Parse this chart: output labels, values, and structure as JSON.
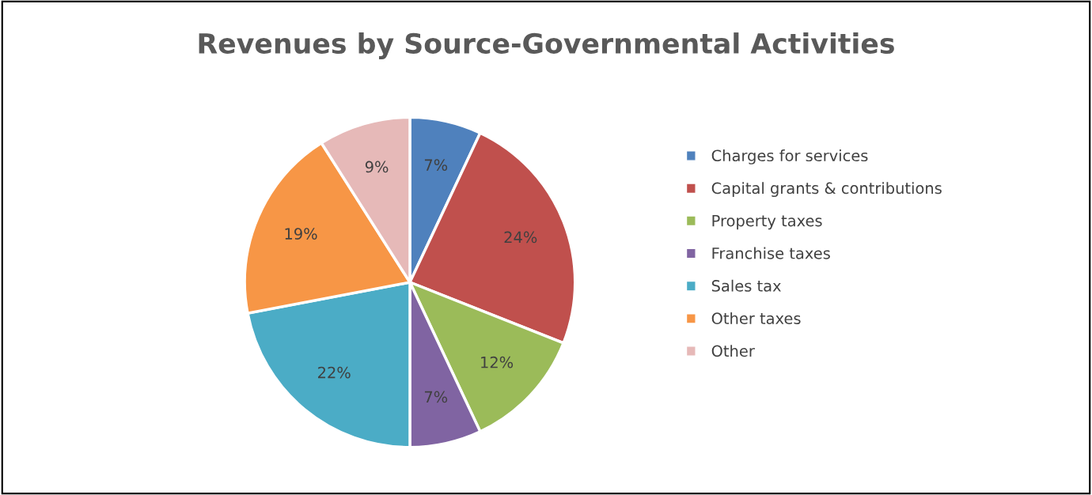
{
  "chart_data": {
    "type": "pie",
    "title": "Revenues by Source-Governmental Activities",
    "categories": [
      "Charges for services",
      "Capital grants & contributions",
      "Property taxes",
      "Franchise taxes",
      "Sales tax",
      "Other taxes",
      "Other"
    ],
    "values": [
      7,
      24,
      12,
      7,
      22,
      19,
      9
    ],
    "colors": [
      "#4f81bd",
      "#c0504d",
      "#9bbb59",
      "#8064a2",
      "#4bacc6",
      "#f79646",
      "#e6b9b8"
    ],
    "value_labels": [
      "7%",
      "24%",
      "12%",
      "7%",
      "22%",
      "19%",
      "9%"
    ],
    "legend": "right"
  }
}
